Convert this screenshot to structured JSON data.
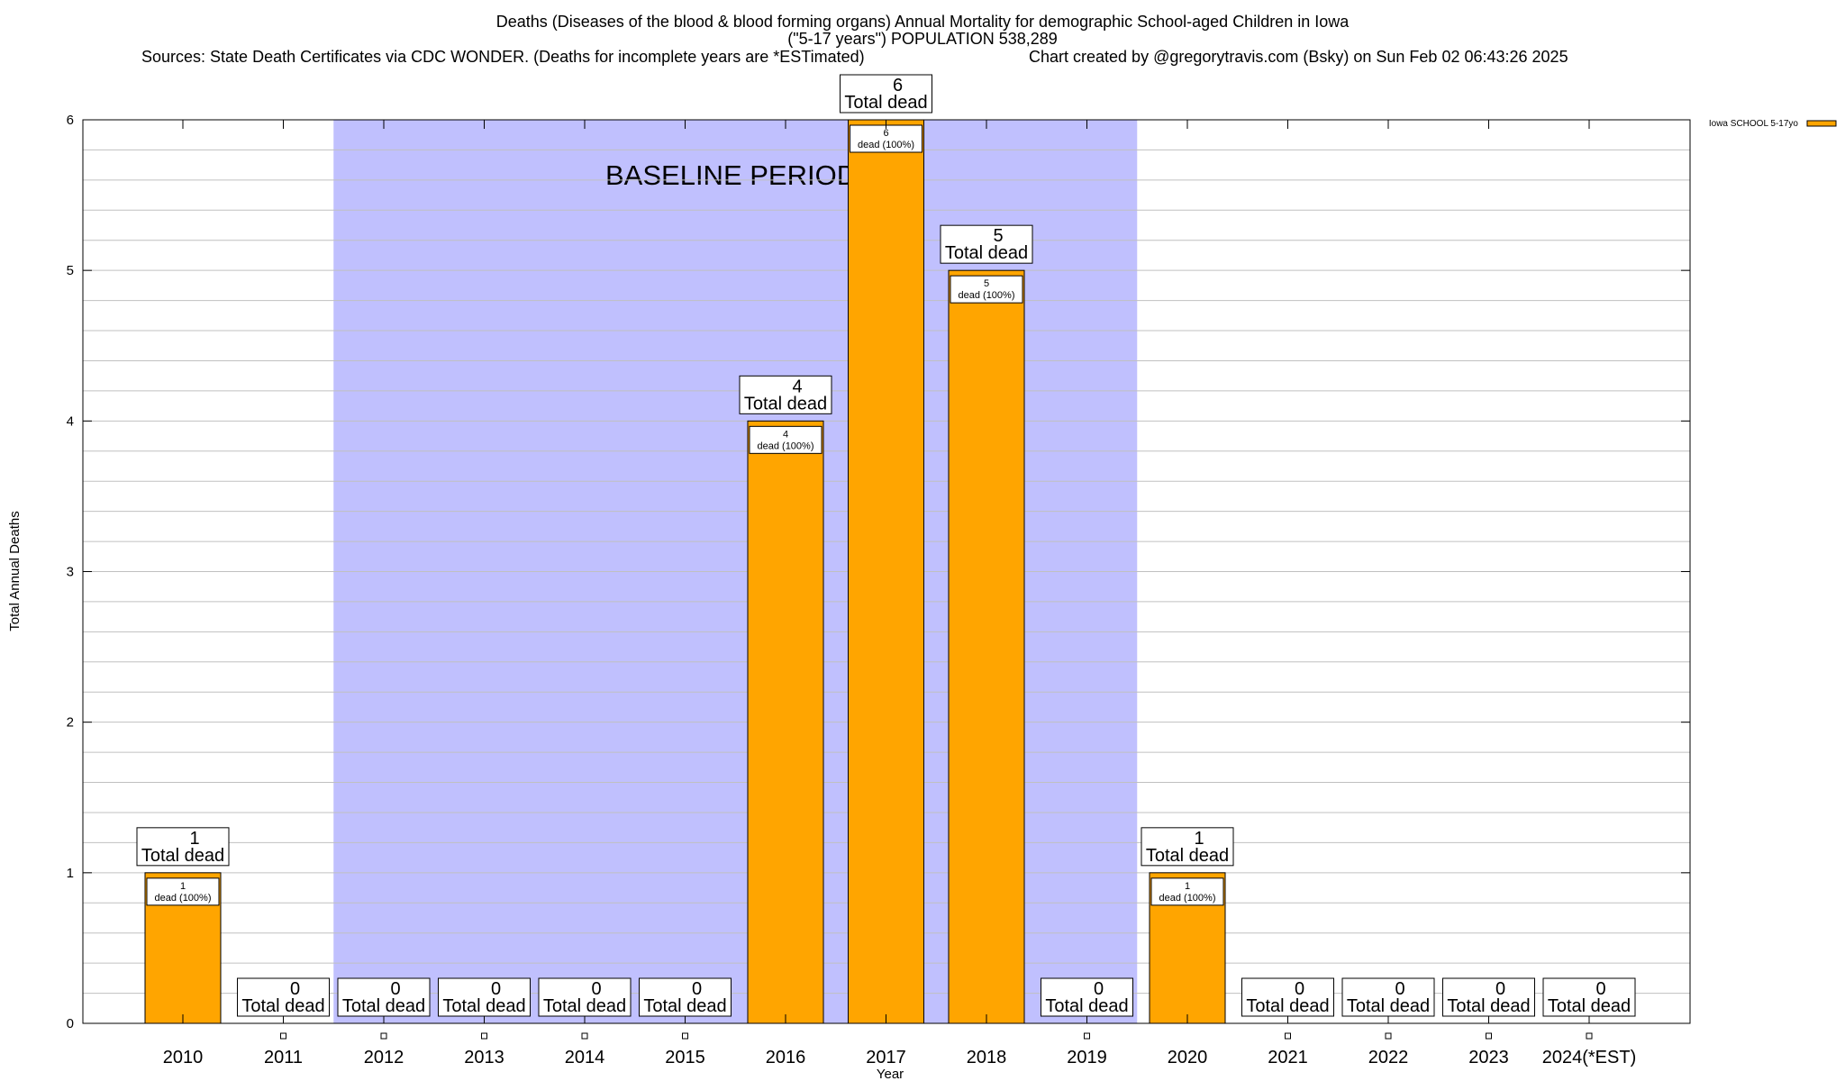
{
  "title_line1": "Deaths (Diseases of the blood & blood forming organs) Annual Mortality for demographic School-aged Children in Iowa",
  "title_line2": "(\"5-17 years\") POPULATION 538,289",
  "sources": "Sources: State Death Certificates via CDC WONDER. (Deaths for incomplete years are *ESTimated)",
  "credit": "Chart created by @gregorytravis.com (Bsky) on Sun Feb 02 06:43:26 2025",
  "colors": {
    "bar": "#ffa500",
    "baseline_band": "#c0c0fe",
    "grid": "#c0c0c0"
  },
  "chart_data": {
    "type": "bar",
    "xlabel": "Year",
    "ylabel": "Total Annual Deaths",
    "ylim": [
      0,
      6
    ],
    "y_ticks": [
      "0",
      "1",
      "2",
      "3",
      "4",
      "5",
      "6"
    ],
    "categories": [
      "2010",
      "2011",
      "2012",
      "2013",
      "2014",
      "2015",
      "2016",
      "2017",
      "2018",
      "2019",
      "2020",
      "2021",
      "2022",
      "2023",
      "2024(*EST)"
    ],
    "series": [
      {
        "name": "Iowa SCHOOL 5-17yo",
        "values": [
          1,
          0,
          0,
          0,
          0,
          0,
          4,
          6,
          5,
          0,
          1,
          0,
          0,
          0,
          0
        ]
      }
    ],
    "total_label": "Total dead",
    "inner_label": "dead (100%)",
    "baseline": {
      "label": "BASELINE PERIOD",
      "from": "2012",
      "to": "2019"
    },
    "legend_position": "top-right",
    "grid": true
  }
}
